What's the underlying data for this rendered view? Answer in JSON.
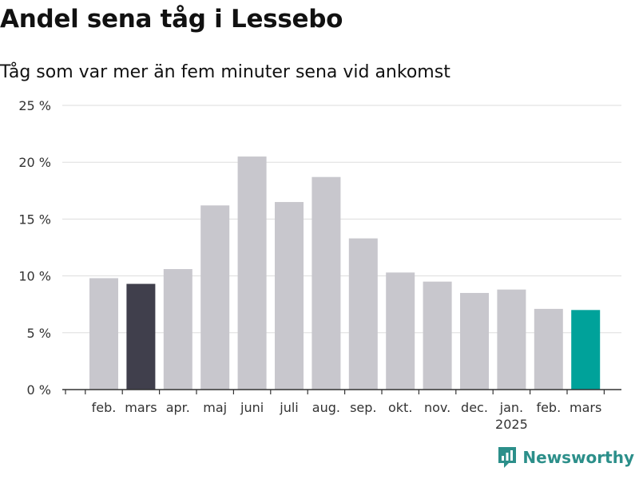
{
  "header": {
    "title": "Andel sena tåg i Lessebo",
    "subtitle": "Tåg som var mer än fem minuter sena vid ankomst"
  },
  "brand": {
    "name": "Newsworthy"
  },
  "colors": {
    "bar": "#c8c7cd",
    "highlight_prev": "#403f4c",
    "highlight_current": "#00a29a",
    "grid": "#dddddd",
    "axis": "#333333",
    "brand": "#2c8f8a"
  },
  "chart_data": {
    "type": "bar",
    "title": "Andel sena tåg i Lessebo",
    "subtitle": "Tåg som var mer än fem minuter sena vid ankomst",
    "categories": [
      "feb.",
      "mars",
      "apr.",
      "maj",
      "juni",
      "juli",
      "aug.",
      "sep.",
      "okt.",
      "nov.",
      "dec.",
      "jan.",
      "feb.",
      "mars"
    ],
    "year_labels": [
      "",
      "",
      "",
      "",
      "",
      "",
      "",
      "",
      "",
      "",
      "",
      "2025",
      "",
      ""
    ],
    "values": [
      9.8,
      9.3,
      10.6,
      16.2,
      20.5,
      16.5,
      18.7,
      13.3,
      10.3,
      9.5,
      8.5,
      8.8,
      7.1,
      7.0
    ],
    "highlight": [
      1,
      13
    ],
    "y_ticks": [
      "0 %",
      "5 %",
      "10 %",
      "15 %",
      "20 %",
      "25 %"
    ],
    "ylim": [
      0,
      25
    ],
    "grid": true,
    "xlabel": "",
    "ylabel": ""
  }
}
